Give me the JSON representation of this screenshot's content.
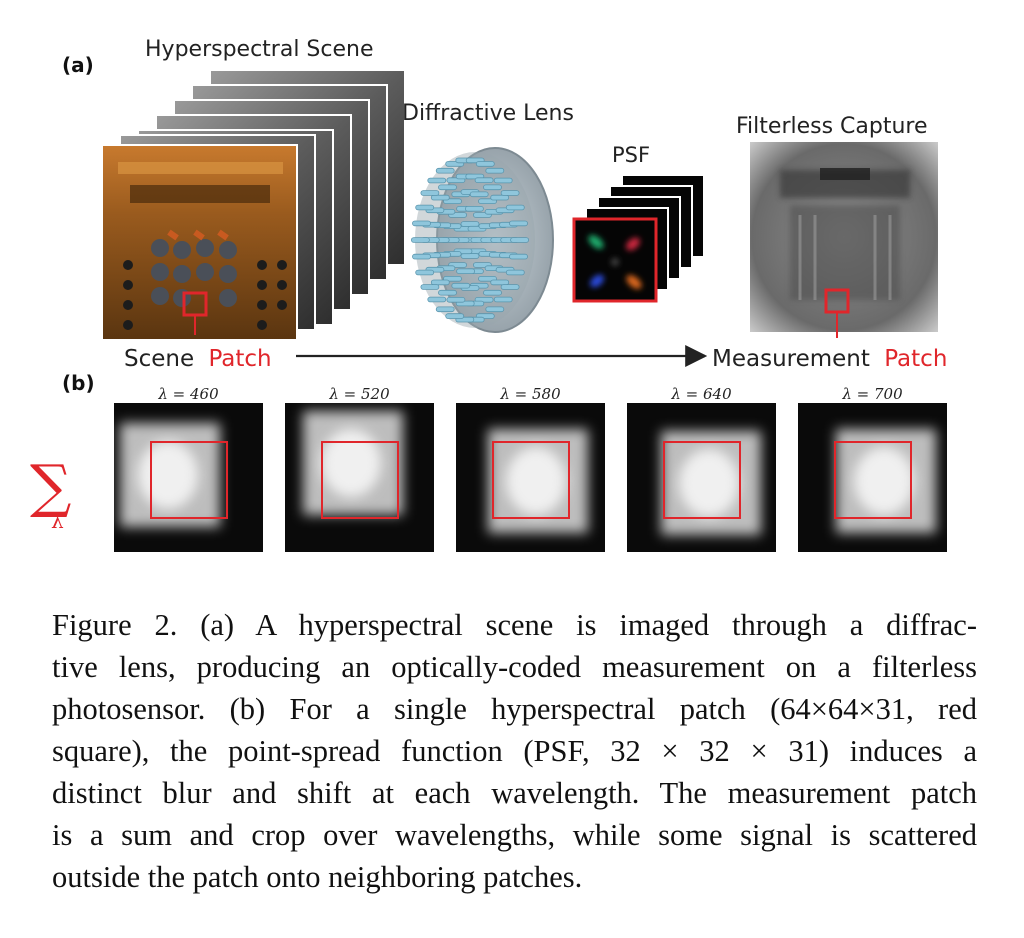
{
  "panel_a": {
    "label": "(a)",
    "scene_title": "Hyperspectral Scene",
    "lens_title": "Diffractive Lens",
    "psf_title": "PSF",
    "capture_title": "Filterless Capture",
    "scene_patch_word1": "Scene",
    "scene_patch_word2": "Patch",
    "measurement_patch_word1": "Measurement",
    "measurement_patch_word2": "Patch"
  },
  "panel_b": {
    "label": "(b)",
    "sum_symbol": "∑",
    "sum_subscript": "λ",
    "wavelength_labels": [
      "λ = 460",
      "λ = 520",
      "λ = 580",
      "λ = 640",
      "λ = 700"
    ]
  },
  "colors": {
    "accent_red": "#e0262b",
    "lens_blue": "#8fc6dc"
  },
  "caption": {
    "lines": [
      "Figure 2. (a) A hyperspectral scene is imaged through a diffrac-",
      "tive lens, producing an optically-coded measurement on a filterless",
      "photosensor. (b) For a single hyperspectral patch (64×64×31, red",
      "square), the point-spread function (PSF, 32 × 32 × 31) induces a",
      "distinct blur and shift at each wavelength. The measurement patch",
      "is a sum and crop over wavelengths, while some signal is scattered",
      "outside the patch onto neighboring patches."
    ]
  }
}
